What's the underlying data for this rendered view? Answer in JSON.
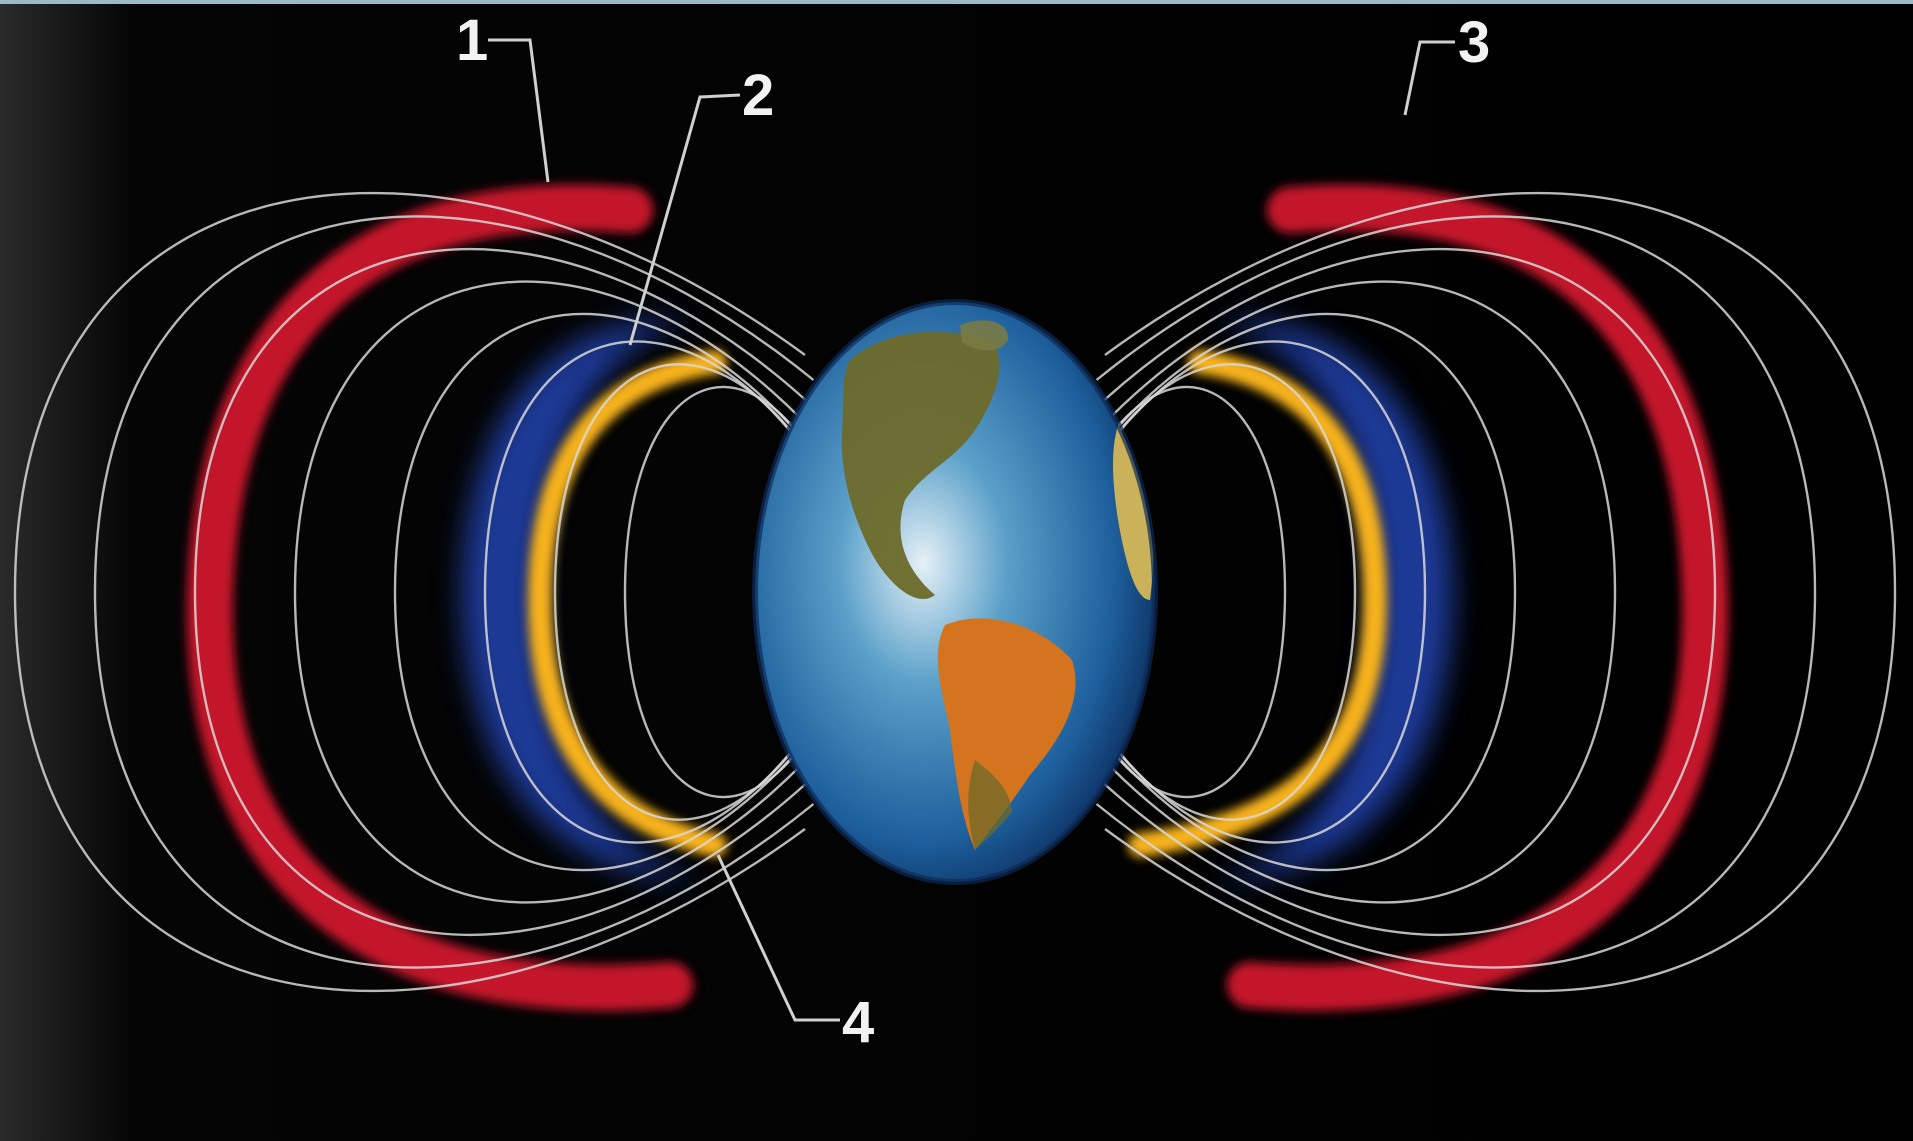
{
  "figure": {
    "colors": {
      "background": "#000000",
      "field_lines": "#d8d8d8",
      "outer_belt": "#c4122b",
      "inner_belt": "#f7b21d",
      "plasma_zone": "#1f3c9e",
      "ocean": "#1f6aa8",
      "land": "#6d6a2a",
      "land_warm": "#d4741e",
      "callout_text": "#f2f2f2"
    },
    "callouts": [
      {
        "label": "1"
      },
      {
        "label": "2"
      },
      {
        "label": "3"
      },
      {
        "label": "4"
      }
    ]
  }
}
